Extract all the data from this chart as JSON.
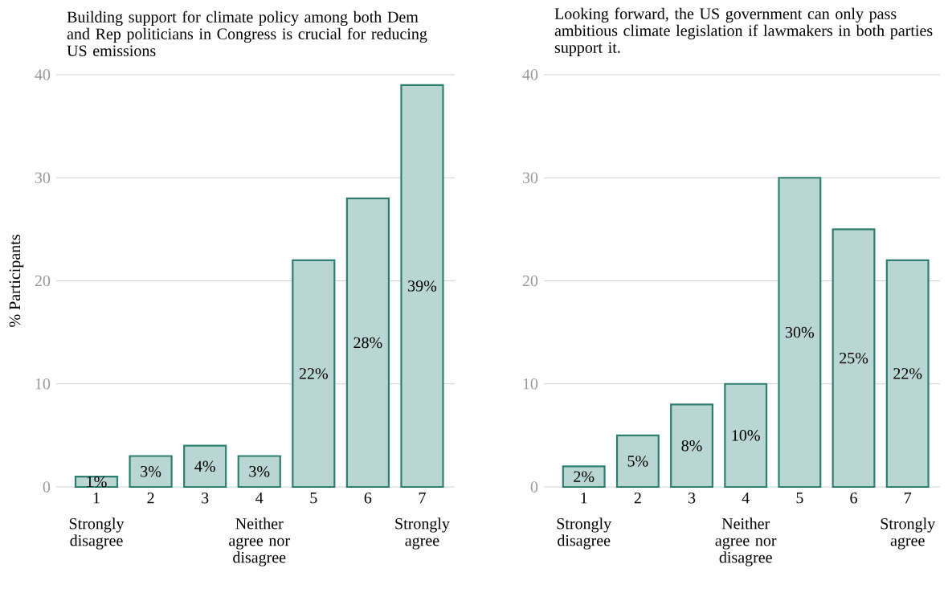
{
  "chart_data": [
    {
      "type": "bar",
      "title": "Building support for climate policy among both Dem and Rep politicians in Congress is crucial for reducing US emissions",
      "ylabel": "% Participants",
      "categories": [
        "1",
        "2",
        "3",
        "4",
        "5",
        "6",
        "7"
      ],
      "values": [
        1,
        3,
        4,
        3,
        22,
        28,
        39
      ],
      "value_labels": [
        "1%",
        "3%",
        "4%",
        "3%",
        "22%",
        "28%",
        "39%"
      ],
      "color": "#b9d6d3",
      "ylim": [
        0,
        40
      ],
      "yticks": [
        0,
        10,
        20,
        30,
        40
      ],
      "grid": "y",
      "annotations": [
        "Strongly disagree",
        "Neither agree nor disagree",
        "Strongly agree"
      ]
    },
    {
      "type": "bar",
      "title": "Looking forward, the US government can only pass ambitious climate legislation if lawmakers in both parties support it.",
      "categories": [
        "1",
        "2",
        "3",
        "4",
        "5",
        "6",
        "7"
      ],
      "values": [
        2,
        5,
        8,
        10,
        30,
        25,
        22
      ],
      "value_labels": [
        "2%",
        "5%",
        "8%",
        "10%",
        "30%",
        "25%",
        "22%"
      ],
      "color": "#b9d6d3",
      "ylim": [
        0,
        40
      ],
      "yticks": [
        0,
        10,
        20,
        30,
        40
      ],
      "grid": "y",
      "annotations": [
        "Strongly disagree",
        "Neither agree nor disagree",
        "Strongly agree"
      ]
    }
  ]
}
